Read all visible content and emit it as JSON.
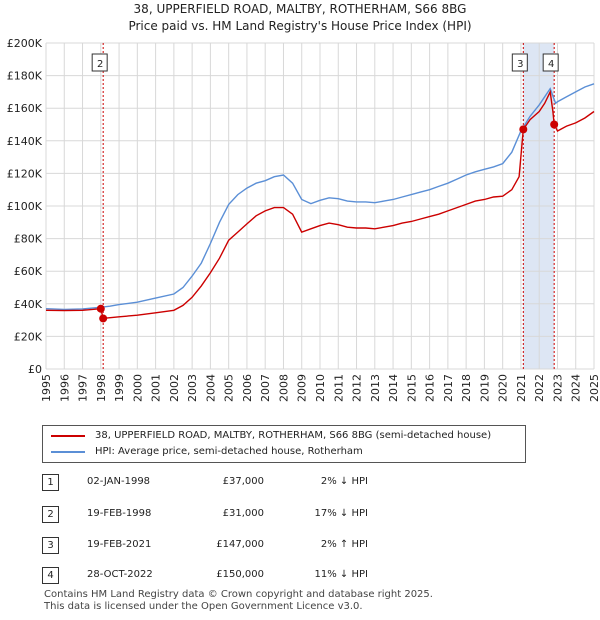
{
  "title_line1": "38, UPPERFIELD ROAD, MALTBY, ROTHERHAM, S66 8BG",
  "title_line2": "Price paid vs. HM Land Registry's House Price Index (HPI)",
  "colors": {
    "property": "#cc0000",
    "hpi": "#5b8fd6",
    "shade": "#dde6f4",
    "grid": "#d8d8d8"
  },
  "chart_data": {
    "type": "line",
    "x_range": [
      1995,
      2025
    ],
    "y_range": [
      0,
      200000
    ],
    "y_ticks": [
      0,
      20000,
      40000,
      60000,
      80000,
      100000,
      120000,
      140000,
      160000,
      180000,
      200000
    ],
    "y_tick_labels": [
      "£0",
      "£20K",
      "£40K",
      "£60K",
      "£80K",
      "£100K",
      "£120K",
      "£140K",
      "£160K",
      "£180K",
      "£200K"
    ],
    "x_ticks": [
      1995,
      1996,
      1997,
      1998,
      1999,
      2000,
      2001,
      2002,
      2003,
      2004,
      2005,
      2006,
      2007,
      2008,
      2009,
      2010,
      2011,
      2012,
      2013,
      2014,
      2015,
      2016,
      2017,
      2018,
      2019,
      2020,
      2021,
      2022,
      2023,
      2024,
      2025
    ],
    "shaded_periods": [
      [
        2021.13,
        2022.82
      ]
    ],
    "series": [
      {
        "name": "HPI: Average price, semi-detached house, Rotherham",
        "x": [
          1995,
          1996,
          1997,
          1997.9,
          1998.5,
          1999,
          2000,
          2001,
          2002,
          2002.5,
          2003,
          2003.5,
          2004,
          2004.5,
          2005,
          2005.5,
          2006,
          2006.5,
          2007,
          2007.5,
          2008,
          2008.5,
          2009,
          2009.5,
          2010,
          2010.5,
          2011,
          2011.5,
          2012,
          2012.5,
          2013,
          2013.5,
          2014,
          2014.5,
          2015,
          2015.5,
          2016,
          2016.5,
          2017,
          2017.5,
          2018,
          2018.5,
          2019,
          2019.5,
          2020,
          2020.5,
          2021,
          2021.5,
          2022,
          2022.3,
          2022.6,
          2022.9,
          2023,
          2023.5,
          2024,
          2024.5,
          2025
        ],
        "values": [
          37000,
          36500,
          36800,
          37800,
          38500,
          39500,
          41000,
          43500,
          46000,
          50000,
          57000,
          65000,
          77000,
          90000,
          101000,
          107000,
          111000,
          114000,
          115500,
          118000,
          119000,
          114000,
          104000,
          101500,
          103500,
          105000,
          104500,
          103000,
          102500,
          102500,
          102000,
          103000,
          104000,
          105500,
          107000,
          108500,
          110000,
          112000,
          114000,
          116500,
          119000,
          121000,
          122500,
          124000,
          126000,
          133000,
          146000,
          155000,
          162000,
          167000,
          172000,
          163000,
          164000,
          167000,
          170000,
          173000,
          175000
        ]
      },
      {
        "name": "38, UPPERFIELD ROAD, MALTBY, ROTHERHAM, S66 8BG (semi-detached house)",
        "x": [
          1995,
          1996,
          1997,
          1998.0,
          1998.13,
          1998.3,
          1999,
          2000,
          2001,
          2002,
          2002.5,
          2003,
          2003.5,
          2004,
          2004.5,
          2005,
          2005.5,
          2006,
          2006.5,
          2007,
          2007.5,
          2008,
          2008.5,
          2009,
          2009.5,
          2010,
          2010.5,
          2011,
          2011.5,
          2012,
          2012.5,
          2013,
          2013.5,
          2014,
          2014.5,
          2015,
          2015.5,
          2016,
          2016.5,
          2017,
          2017.5,
          2018,
          2018.5,
          2019,
          2019.5,
          2020,
          2020.5,
          2020.9,
          2021.13,
          2021.5,
          2022,
          2022.3,
          2022.6,
          2022.75,
          2022.82,
          2023,
          2023.5,
          2024,
          2024.5,
          2025
        ],
        "values": [
          36000,
          35800,
          36000,
          37000,
          31000,
          31200,
          32000,
          33000,
          34500,
          36000,
          39000,
          44000,
          51000,
          59000,
          68000,
          79000,
          84000,
          89000,
          94000,
          97000,
          99000,
          99000,
          95000,
          84000,
          86000,
          88000,
          89500,
          88500,
          87000,
          86500,
          86500,
          86000,
          87000,
          88000,
          89500,
          90500,
          92000,
          93500,
          95000,
          97000,
          99000,
          101000,
          103000,
          104000,
          105500,
          106000,
          110000,
          118000,
          147000,
          153000,
          158000,
          163000,
          170000,
          158000,
          150000,
          146000,
          149000,
          151000,
          154000,
          158000
        ]
      }
    ],
    "sales": [
      {
        "label": "1",
        "x": 1998.0,
        "value": 37000,
        "marker_line": false
      },
      {
        "label": "2",
        "x": 1998.13,
        "value": 31000,
        "marker_line": true
      },
      {
        "label": "3",
        "x": 2021.13,
        "value": 147000,
        "marker_line": true
      },
      {
        "label": "4",
        "x": 2022.82,
        "value": 150000,
        "marker_line": true
      }
    ],
    "box_labels": [
      "2",
      "3",
      "4"
    ]
  },
  "legend": {
    "property": "38, UPPERFIELD ROAD, MALTBY, ROTHERHAM, S66 8BG (semi-detached house)",
    "hpi": "HPI: Average price, semi-detached house, Rotherham"
  },
  "transactions": [
    {
      "num": "1",
      "date": "02-JAN-1998",
      "price": "£37,000",
      "hpi": "2% ↓ HPI"
    },
    {
      "num": "2",
      "date": "19-FEB-1998",
      "price": "£31,000",
      "hpi": "17% ↓ HPI"
    },
    {
      "num": "3",
      "date": "19-FEB-2021",
      "price": "£147,000",
      "hpi": "2% ↑ HPI"
    },
    {
      "num": "4",
      "date": "28-OCT-2022",
      "price": "£150,000",
      "hpi": "11% ↓ HPI"
    }
  ],
  "footer_line1": "Contains HM Land Registry data © Crown copyright and database right 2025.",
  "footer_line2": "This data is licensed under the Open Government Licence v3.0."
}
